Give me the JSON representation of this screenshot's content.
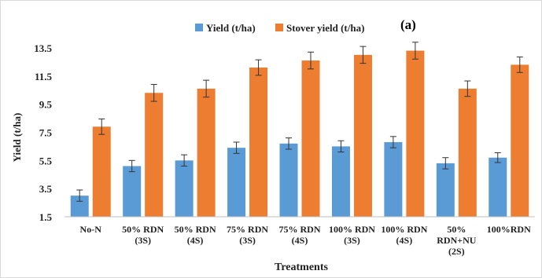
{
  "chart_data": {
    "type": "bar",
    "panel_label": "(a)",
    "title": "",
    "xlabel": "Treatments",
    "ylabel": "Yield  (t/ha)",
    "ylim": [
      1.5,
      14.5
    ],
    "yticks": [
      "1.5",
      "3.5",
      "5.5",
      "7.5",
      "9.5",
      "11.5",
      "13.5"
    ],
    "ytick_values": [
      1.5,
      3.5,
      5.5,
      7.5,
      9.5,
      11.5,
      13.5
    ],
    "grid": false,
    "legend_position": "top",
    "categories": [
      [
        "No-N"
      ],
      [
        "50% RDN",
        "(3S)"
      ],
      [
        "50% RDN",
        "(4S)"
      ],
      [
        "75% RDN",
        "(3S)"
      ],
      [
        "75% RDN",
        "(4S)"
      ],
      [
        "100% RDN",
        "(3S)"
      ],
      [
        "100% RDN",
        "(4S)"
      ],
      [
        "50%",
        "RDN+NU",
        "(2S)"
      ],
      [
        "100%RDN"
      ]
    ],
    "series": [
      {
        "name": "Yield (t/ha)",
        "color": "#5B9BD5",
        "values": [
          3.0,
          5.1,
          5.5,
          6.4,
          6.7,
          6.5,
          6.8,
          5.3,
          5.7
        ],
        "errors": [
          0.4,
          0.4,
          0.4,
          0.4,
          0.4,
          0.4,
          0.4,
          0.4,
          0.35
        ]
      },
      {
        "name": "Stover yield (t/ha)",
        "color": "#ED7D31",
        "values": [
          7.9,
          10.3,
          10.6,
          12.1,
          12.6,
          13.0,
          13.3,
          10.6,
          12.3
        ],
        "errors": [
          0.55,
          0.6,
          0.6,
          0.55,
          0.6,
          0.6,
          0.6,
          0.55,
          0.55
        ]
      }
    ]
  }
}
